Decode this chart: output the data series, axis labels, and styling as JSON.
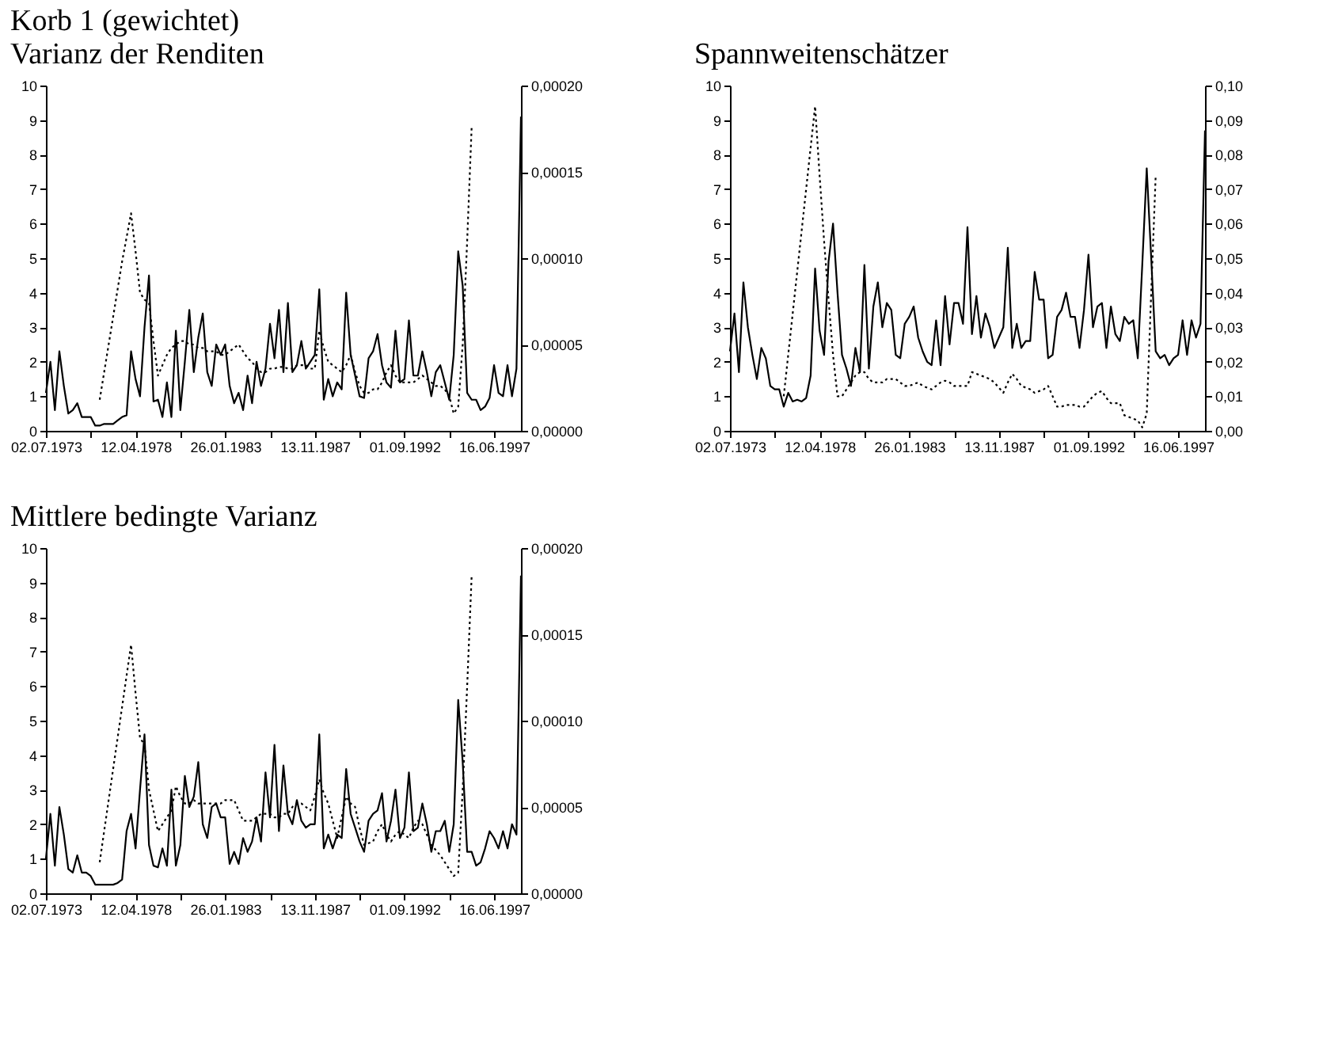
{
  "chart_data": [
    {
      "type": "line",
      "title": "Korb 1 (gewichtet)",
      "subtitle": "Varianz der Renditen",
      "categories": [
        "02.07.1973",
        null,
        null,
        null,
        null,
        null,
        null,
        null,
        null,
        null,
        null,
        null,
        null,
        null,
        null,
        null,
        null,
        null,
        null,
        null,
        "12.04.1978",
        null,
        null,
        null,
        null,
        null,
        null,
        null,
        null,
        null,
        null,
        null,
        null,
        null,
        null,
        null,
        null,
        null,
        null,
        null,
        "26.01.1983",
        null,
        null,
        null,
        null,
        null,
        null,
        null,
        null,
        null,
        null,
        null,
        null,
        null,
        null,
        null,
        null,
        null,
        null,
        null,
        "13.11.1987",
        null,
        null,
        null,
        null,
        null,
        null,
        null,
        null,
        null,
        null,
        null,
        null,
        null,
        null,
        null,
        null,
        null,
        null,
        null,
        "01.09.1992",
        null,
        null,
        null,
        null,
        null,
        null,
        null,
        null,
        null,
        null,
        null,
        null,
        null,
        null,
        null,
        null,
        null,
        null,
        null,
        "16.06.1997",
        null,
        null,
        null,
        null,
        null,
        null
      ],
      "ylim": [
        0,
        10
      ],
      "yticks": [
        0,
        1,
        2,
        3,
        4,
        5,
        6,
        7,
        8,
        9,
        10
      ],
      "y2lim": [
        0,
        0.0002
      ],
      "y2ticks": [
        {
          "value": 0,
          "label": "0,00000"
        },
        {
          "value": 5e-05,
          "label": "0,00005"
        },
        {
          "value": 0.0001,
          "label": "0,00010"
        },
        {
          "value": 0.00015,
          "label": "0,00015"
        },
        {
          "value": 0.0002,
          "label": "0,00020"
        }
      ],
      "series": [
        {
          "color": "#000000",
          "line_style": "solid",
          "values": [
            1.1,
            2.0,
            0.6,
            2.3,
            1.3,
            0.5,
            0.6,
            0.8,
            0.4,
            0.4,
            0.4,
            0.15,
            0.15,
            0.2,
            0.2,
            0.2,
            0.3,
            0.4,
            0.45,
            2.3,
            1.5,
            1.0,
            3.0,
            4.5,
            0.85,
            0.9,
            0.4,
            1.4,
            0.4,
            2.9,
            0.6,
            2.0,
            3.5,
            1.7,
            2.7,
            3.4,
            1.7,
            1.3,
            2.5,
            2.2,
            2.5,
            1.3,
            0.8,
            1.1,
            0.6,
            1.6,
            0.8,
            2.0,
            1.3,
            1.8,
            3.1,
            2.1,
            3.5,
            1.7,
            3.7,
            1.7,
            1.9,
            2.6,
            1.8,
            2.0,
            2.2,
            4.1,
            0.9,
            1.5,
            1.0,
            1.4,
            1.2,
            4.0,
            2.2,
            1.6,
            1.0,
            0.95,
            2.1,
            2.3,
            2.8,
            1.9,
            1.4,
            1.25,
            2.9,
            1.4,
            1.5,
            3.2,
            1.6,
            1.6,
            2.3,
            1.7,
            1.0,
            1.7,
            1.9,
            1.4,
            0.9,
            2.2,
            5.2,
            4.2,
            1.1,
            0.9,
            0.9,
            0.6,
            0.7,
            0.95,
            1.9,
            1.1,
            1.0,
            1.9,
            1.0,
            1.8,
            9.1
          ]
        },
        {
          "color": "#000000",
          "line_style": "dotted",
          "axis": "y2",
          "values": [
            null,
            null,
            null,
            null,
            null,
            null,
            null,
            null,
            null,
            null,
            null,
            null,
            1.8e-05,
            3.4e-05,
            5e-05,
            6.6e-05,
            8.2e-05,
            9.8e-05,
            0.000112,
            0.000126,
            0.000104,
            8e-05,
            7.6e-05,
            7.4e-05,
            5.2e-05,
            3.2e-05,
            3.8e-05,
            4.4e-05,
            4.8e-05,
            5e-05,
            5.2e-05,
            5.2e-05,
            5e-05,
            5e-05,
            4.8e-05,
            4.8e-05,
            4.6e-05,
            4.6e-05,
            4.6e-05,
            4.4e-05,
            4.4e-05,
            4.6e-05,
            4.8e-05,
            5e-05,
            4.6e-05,
            4.2e-05,
            4e-05,
            3.6e-05,
            3.4e-05,
            3.4e-05,
            3.6e-05,
            3.6e-05,
            3.7e-05,
            3.7e-05,
            3.6e-05,
            3.6e-05,
            3.8e-05,
            3.8e-05,
            3.8e-05,
            3.6e-05,
            3.6e-05,
            5.8e-05,
            4.8e-05,
            4e-05,
            3.8e-05,
            3.6e-05,
            3.4e-05,
            3.8e-05,
            4.4e-05,
            3.4e-05,
            2.6e-05,
            2.2e-05,
            2.2e-05,
            2.4e-05,
            2.4e-05,
            2.8e-05,
            3.4e-05,
            3.8e-05,
            3.2e-05,
            2.8e-05,
            2.8e-05,
            2.8e-05,
            2.8e-05,
            3e-05,
            3.2e-05,
            3e-05,
            2.8e-05,
            2.6e-05,
            2.6e-05,
            2.4e-05,
            2e-05,
            1e-05,
            1.4e-05,
            5e-05,
            0.00011,
            0.000176,
            null,
            null,
            null,
            null,
            null,
            null,
            null,
            null,
            null,
            null,
            null
          ]
        }
      ]
    },
    {
      "type": "line",
      "title": "Spannweitenschätzer",
      "categories": [
        "02.07.1973",
        null,
        null,
        null,
        null,
        null,
        null,
        null,
        null,
        null,
        null,
        null,
        null,
        null,
        null,
        null,
        null,
        null,
        null,
        null,
        "12.04.1978",
        null,
        null,
        null,
        null,
        null,
        null,
        null,
        null,
        null,
        null,
        null,
        null,
        null,
        null,
        null,
        null,
        null,
        null,
        null,
        "26.01.1983",
        null,
        null,
        null,
        null,
        null,
        null,
        null,
        null,
        null,
        null,
        null,
        null,
        null,
        null,
        null,
        null,
        null,
        null,
        null,
        "13.11.1987",
        null,
        null,
        null,
        null,
        null,
        null,
        null,
        null,
        null,
        null,
        null,
        null,
        null,
        null,
        null,
        null,
        null,
        null,
        null,
        "01.09.1992",
        null,
        null,
        null,
        null,
        null,
        null,
        null,
        null,
        null,
        null,
        null,
        null,
        null,
        null,
        null,
        null,
        null,
        null,
        null,
        "16.06.1997",
        null,
        null,
        null,
        null,
        null,
        null
      ],
      "ylim": [
        0,
        10
      ],
      "yticks": [
        0,
        1,
        2,
        3,
        4,
        5,
        6,
        7,
        8,
        9,
        10
      ],
      "y2lim": [
        0,
        0.1
      ],
      "y2ticks": [
        {
          "value": 0,
          "label": "0,00"
        },
        {
          "value": 0.01,
          "label": "0,01"
        },
        {
          "value": 0.02,
          "label": "0,02"
        },
        {
          "value": 0.03,
          "label": "0,03"
        },
        {
          "value": 0.04,
          "label": "0,04"
        },
        {
          "value": 0.05,
          "label": "0,05"
        },
        {
          "value": 0.06,
          "label": "0,06"
        },
        {
          "value": 0.07,
          "label": "0,07"
        },
        {
          "value": 0.08,
          "label": "0,08"
        },
        {
          "value": 0.09,
          "label": "0,09"
        },
        {
          "value": 0.1,
          "label": "0,10"
        }
      ],
      "series": [
        {
          "color": "#000000",
          "line_style": "solid",
          "values": [
            2.3,
            3.4,
            1.7,
            4.3,
            3.0,
            2.2,
            1.5,
            2.4,
            2.1,
            1.3,
            1.2,
            1.2,
            0.7,
            1.1,
            0.85,
            0.9,
            0.85,
            0.95,
            1.6,
            4.7,
            2.9,
            2.2,
            4.9,
            6.0,
            4.0,
            2.2,
            1.8,
            1.3,
            2.4,
            1.7,
            4.8,
            1.8,
            3.6,
            4.3,
            3.0,
            3.7,
            3.5,
            2.2,
            2.1,
            3.1,
            3.3,
            3.6,
            2.7,
            2.3,
            2.0,
            1.9,
            3.2,
            1.9,
            3.9,
            2.5,
            3.7,
            3.7,
            3.1,
            5.9,
            2.8,
            3.9,
            2.7,
            3.4,
            3.0,
            2.4,
            2.7,
            3.0,
            5.3,
            2.4,
            3.1,
            2.4,
            2.6,
            2.6,
            4.6,
            3.8,
            3.8,
            2.1,
            2.2,
            3.3,
            3.5,
            4.0,
            3.3,
            3.3,
            2.4,
            3.5,
            5.1,
            3.0,
            3.6,
            3.7,
            2.4,
            3.6,
            2.8,
            2.6,
            3.3,
            3.1,
            3.2,
            2.1,
            4.8,
            7.6,
            5.0,
            2.3,
            2.1,
            2.2,
            1.9,
            2.1,
            2.2,
            3.2,
            2.2,
            3.2,
            2.7,
            3.1,
            8.7
          ]
        },
        {
          "color": "#000000",
          "line_style": "dotted",
          "axis": "y2",
          "values": [
            null,
            null,
            null,
            null,
            null,
            null,
            null,
            null,
            null,
            null,
            null,
            null,
            0.01,
            0.022,
            0.034,
            0.046,
            0.058,
            0.07,
            0.082,
            0.094,
            0.074,
            0.055,
            0.038,
            0.022,
            0.01,
            0.01,
            0.012,
            0.014,
            0.016,
            0.017,
            0.017,
            0.015,
            0.014,
            0.014,
            0.014,
            0.015,
            0.015,
            0.015,
            0.014,
            0.013,
            0.013,
            0.0135,
            0.014,
            0.013,
            0.0125,
            0.012,
            0.013,
            0.014,
            0.0145,
            0.014,
            0.013,
            0.013,
            0.013,
            0.013,
            0.017,
            0.0165,
            0.016,
            0.0155,
            0.015,
            0.014,
            0.0125,
            0.011,
            0.014,
            0.0165,
            0.015,
            0.013,
            0.0125,
            0.012,
            0.011,
            0.0115,
            0.012,
            0.013,
            0.01,
            0.007,
            0.007,
            0.0075,
            0.0075,
            0.0075,
            0.007,
            0.007,
            0.0085,
            0.01,
            0.011,
            0.0115,
            0.0095,
            0.008,
            0.008,
            0.008,
            0.0045,
            0.004,
            0.0035,
            0.003,
            0.001,
            0.005,
            0.04,
            0.074,
            null,
            null,
            null,
            null,
            null,
            null,
            null,
            null,
            null,
            null,
            null
          ]
        }
      ]
    },
    {
      "type": "line",
      "title": "Mittlere bedingte Varianz",
      "categories": [
        "02.07.1973",
        null,
        null,
        null,
        null,
        null,
        null,
        null,
        null,
        null,
        null,
        null,
        null,
        null,
        null,
        null,
        null,
        null,
        null,
        null,
        "12.04.1978",
        null,
        null,
        null,
        null,
        null,
        null,
        null,
        null,
        null,
        null,
        null,
        null,
        null,
        null,
        null,
        null,
        null,
        null,
        null,
        "26.01.1983",
        null,
        null,
        null,
        null,
        null,
        null,
        null,
        null,
        null,
        null,
        null,
        null,
        null,
        null,
        null,
        null,
        null,
        null,
        null,
        "13.11.1987",
        null,
        null,
        null,
        null,
        null,
        null,
        null,
        null,
        null,
        null,
        null,
        null,
        null,
        null,
        null,
        null,
        null,
        null,
        null,
        "01.09.1992",
        null,
        null,
        null,
        null,
        null,
        null,
        null,
        null,
        null,
        null,
        null,
        null,
        null,
        null,
        null,
        null,
        null,
        null,
        null,
        "16.06.1997",
        null,
        null,
        null,
        null,
        null,
        null
      ],
      "ylim": [
        0,
        10
      ],
      "yticks": [
        0,
        1,
        2,
        3,
        4,
        5,
        6,
        7,
        8,
        9,
        10
      ],
      "y2lim": [
        0,
        0.0002
      ],
      "y2ticks": [
        {
          "value": 0,
          "label": "0,00000"
        },
        {
          "value": 5e-05,
          "label": "0,00005"
        },
        {
          "value": 0.0001,
          "label": "0,00010"
        },
        {
          "value": 0.00015,
          "label": "0,00015"
        },
        {
          "value": 0.0002,
          "label": "0,00020"
        }
      ],
      "series": [
        {
          "color": "#000000",
          "line_style": "solid",
          "values": [
            1.0,
            2.3,
            0.8,
            2.5,
            1.7,
            0.7,
            0.6,
            1.1,
            0.6,
            0.6,
            0.5,
            0.25,
            0.25,
            0.25,
            0.25,
            0.25,
            0.3,
            0.4,
            1.8,
            2.3,
            1.3,
            3.0,
            4.6,
            1.4,
            0.8,
            0.75,
            1.3,
            0.8,
            3.0,
            0.8,
            1.4,
            3.4,
            2.5,
            2.8,
            3.8,
            2.0,
            1.6,
            2.5,
            2.6,
            2.2,
            2.2,
            0.85,
            1.2,
            0.85,
            1.6,
            1.2,
            1.5,
            2.2,
            1.5,
            3.5,
            2.2,
            4.3,
            1.8,
            3.7,
            2.3,
            2.0,
            2.7,
            2.1,
            1.9,
            2.0,
            2.0,
            4.6,
            1.3,
            1.7,
            1.3,
            1.7,
            1.6,
            3.6,
            2.3,
            1.9,
            1.5,
            1.2,
            2.1,
            2.3,
            2.4,
            2.9,
            1.5,
            2.1,
            3.0,
            1.6,
            1.9,
            3.5,
            1.8,
            1.9,
            2.6,
            2.0,
            1.2,
            1.8,
            1.8,
            2.1,
            1.2,
            2.0,
            5.6,
            3.8,
            1.2,
            1.2,
            0.8,
            0.9,
            1.3,
            1.8,
            1.6,
            1.3,
            1.8,
            1.3,
            2.0,
            1.7,
            9.2
          ]
        },
        {
          "color": "#000000",
          "line_style": "dotted",
          "axis": "y2",
          "values": [
            null,
            null,
            null,
            null,
            null,
            null,
            null,
            null,
            null,
            null,
            null,
            null,
            1.8e-05,
            3.6e-05,
            5.4e-05,
            7.2e-05,
            9e-05,
            0.000108,
            0.000126,
            0.000144,
            0.000116,
            9e-05,
            8.6e-05,
            6e-05,
            4.8e-05,
            3.6e-05,
            4e-05,
            4.4e-05,
            4.8e-05,
            6.2e-05,
            5.6e-05,
            5.2e-05,
            5.2e-05,
            5.4e-05,
            5.2e-05,
            5.2e-05,
            5.2e-05,
            5.2e-05,
            5.2e-05,
            5.2e-05,
            5.4e-05,
            5.4e-05,
            5.4e-05,
            4.8e-05,
            4.2e-05,
            4.2e-05,
            4.2e-05,
            4.4e-05,
            4.6e-05,
            4.6e-05,
            4.6e-05,
            4.4e-05,
            4.4e-05,
            4.6e-05,
            4.6e-05,
            5e-05,
            5.2e-05,
            5.2e-05,
            5e-05,
            4.8e-05,
            5.6e-05,
            6.6e-05,
            5.8e-05,
            5.2e-05,
            4.2e-05,
            3.2e-05,
            4.4e-05,
            5.6e-05,
            5.2e-05,
            5e-05,
            3.8e-05,
            2.8e-05,
            2.9e-05,
            3e-05,
            3.6e-05,
            4e-05,
            3.4e-05,
            3e-05,
            3.4e-05,
            3.6e-05,
            3.4e-05,
            3.2e-05,
            3.8e-05,
            4.2e-05,
            4e-05,
            3.4e-05,
            2.8e-05,
            2.5e-05,
            2.2e-05,
            1.8e-05,
            1.4e-05,
            1e-05,
            1.2e-05,
            6e-05,
            0.00012,
            0.000184,
            null,
            null,
            null,
            null,
            null,
            null,
            null,
            null,
            null,
            null,
            null
          ]
        }
      ]
    }
  ]
}
